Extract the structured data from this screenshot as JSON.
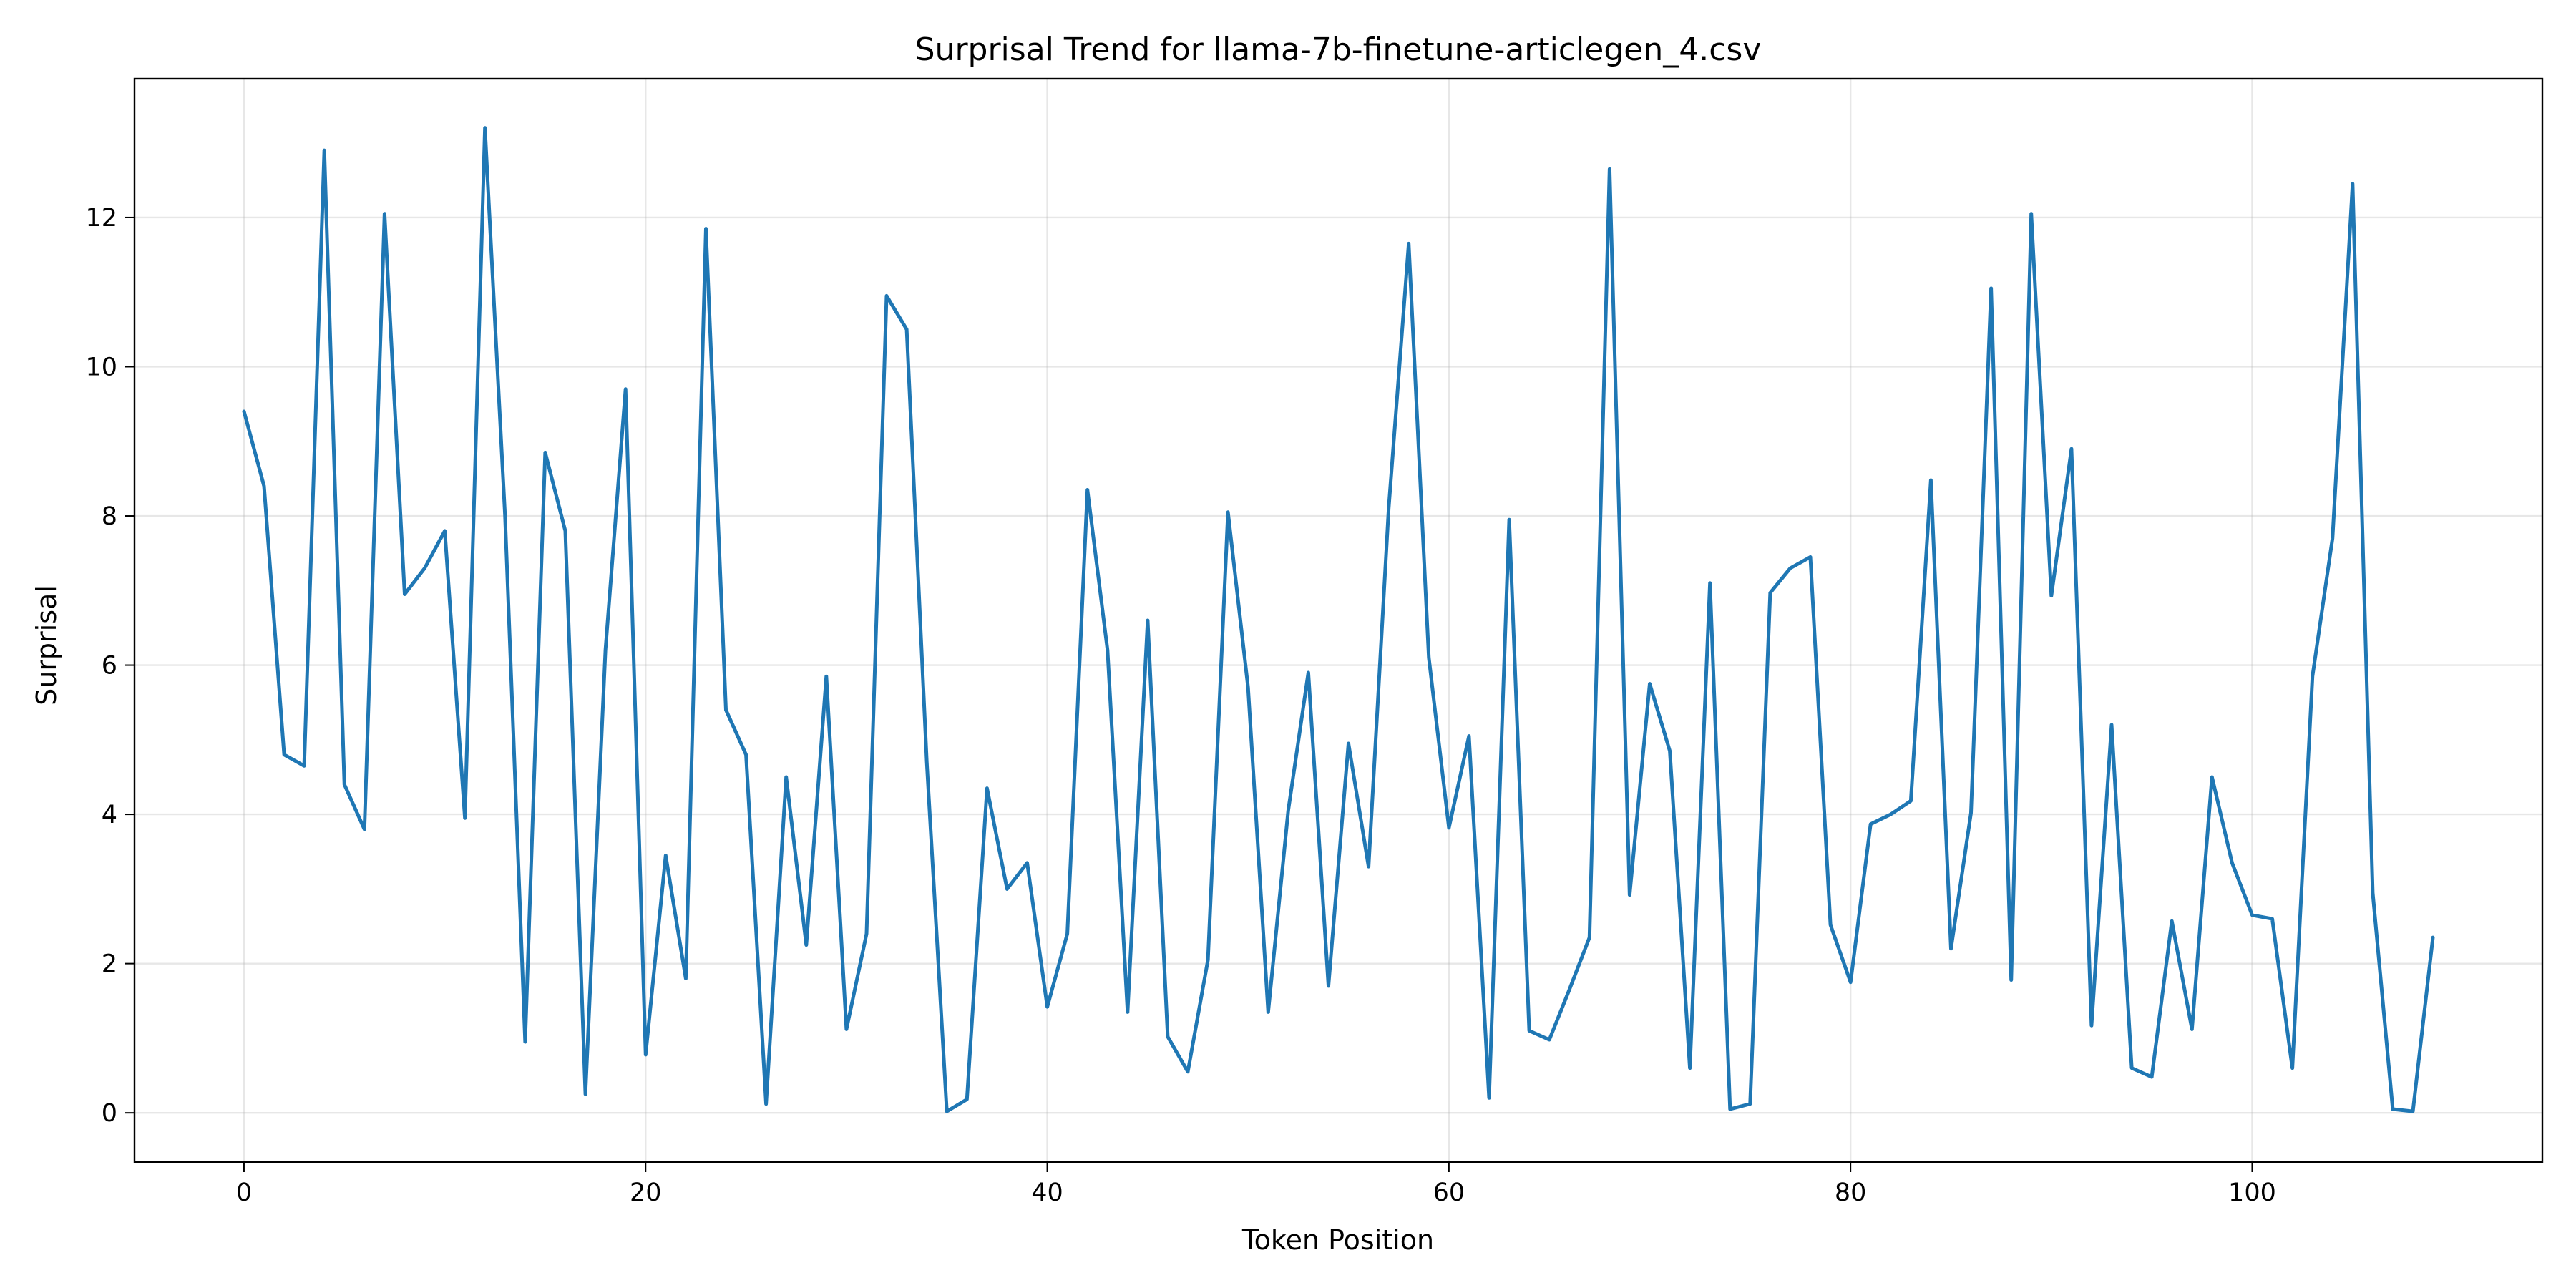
{
  "chart_data": {
    "type": "line",
    "title": "Surprisal Trend for llama-7b-finetune-articlegen_4.csv",
    "xlabel": "Token Position",
    "ylabel": "Surprisal",
    "xlim": [
      -5.45,
      114.45
    ],
    "ylim": [
      -0.66,
      13.86
    ],
    "xticks": [
      0,
      20,
      40,
      60,
      80,
      100
    ],
    "yticks": [
      0,
      2,
      4,
      6,
      8,
      10,
      12
    ],
    "grid": true,
    "legend": "none",
    "series": [
      {
        "color": "#1f77b4",
        "x": [
          0,
          1,
          2,
          3,
          4,
          5,
          6,
          7,
          8,
          9,
          10,
          11,
          12,
          13,
          14,
          15,
          16,
          17,
          18,
          19,
          20,
          21,
          22,
          23,
          24,
          25,
          26,
          27,
          28,
          29,
          30,
          31,
          32,
          33,
          34,
          35,
          36,
          37,
          38,
          39,
          40,
          41,
          42,
          43,
          44,
          45,
          46,
          47,
          48,
          49,
          50,
          51,
          52,
          53,
          54,
          55,
          56,
          57,
          58,
          59,
          60,
          61,
          62,
          63,
          64,
          65,
          66,
          67,
          68,
          69,
          70,
          71,
          72,
          73,
          74,
          75,
          76,
          77,
          78,
          79,
          80,
          81,
          82,
          83,
          84,
          85,
          86,
          87,
          88,
          89,
          90,
          91,
          92,
          93,
          94,
          95,
          96,
          97,
          98,
          99,
          100,
          101,
          102,
          103,
          104,
          105,
          106,
          107,
          108,
          109
        ],
        "values": [
          9.4,
          8.4,
          4.8,
          4.65,
          12.9,
          4.4,
          3.8,
          12.05,
          6.95,
          7.3,
          7.8,
          3.95,
          13.2,
          8.0,
          0.95,
          8.85,
          7.8,
          0.25,
          6.2,
          9.7,
          0.78,
          3.45,
          1.8,
          11.85,
          5.4,
          4.8,
          0.12,
          4.5,
          2.25,
          5.85,
          1.12,
          2.4,
          10.95,
          10.5,
          4.7,
          0.02,
          0.18,
          4.35,
          3.0,
          3.35,
          1.42,
          2.4,
          8.35,
          6.2,
          1.35,
          6.6,
          1.02,
          0.55,
          2.05,
          8.05,
          5.7,
          1.35,
          4.05,
          5.9,
          1.7,
          4.95,
          3.3,
          8.1,
          11.65,
          6.1,
          3.82,
          5.05,
          0.2,
          7.95,
          1.1,
          0.98,
          1.65,
          2.35,
          12.65,
          2.92,
          5.75,
          4.85,
          0.6,
          7.1,
          0.05,
          0.12,
          6.97,
          7.3,
          7.45,
          2.52,
          1.75,
          3.87,
          4.0,
          4.18,
          8.48,
          2.2,
          4.02,
          11.05,
          1.78,
          12.05,
          6.93,
          8.9,
          1.17,
          5.2,
          0.6,
          0.48,
          2.57,
          1.12,
          4.5,
          3.35,
          2.65,
          2.6,
          0.6,
          5.85,
          7.7,
          12.45,
          2.95,
          0.05,
          0.02,
          2.35
        ]
      }
    ]
  }
}
